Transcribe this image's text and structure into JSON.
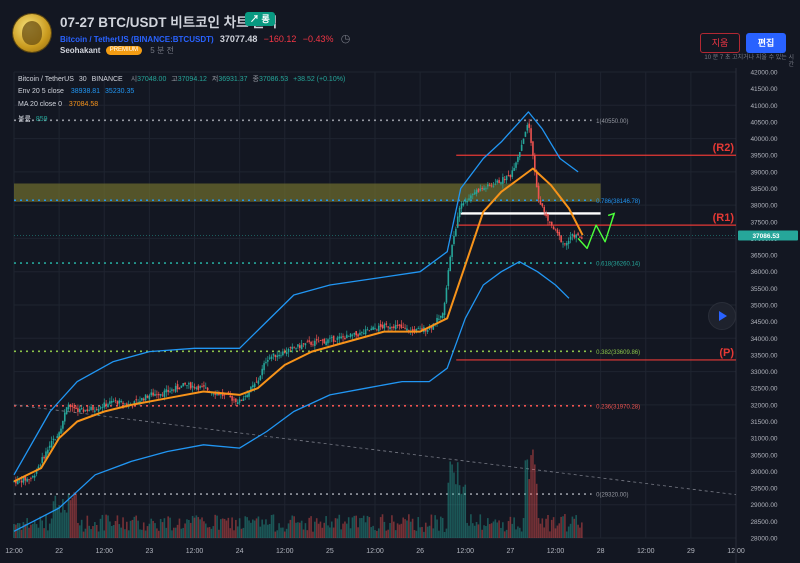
{
  "header": {
    "title": "07-27 BTC/USDT 비트코인 차트 분석",
    "badge": "↗ 롱",
    "symbol_name": "Bitcoin / TetherUS",
    "symbol_code": "(BINANCE:BTCUSDT)",
    "price": "37077.48",
    "change": "−160.12",
    "change_pct": "−0.43%",
    "author": "Seohakant",
    "author_badge": "PREMIUM",
    "published": "5 분 전",
    "delete_label": "지움",
    "edit_label": "편집",
    "edit_note": "10 분 7 초 고치거나 지울 수 있는 시간"
  },
  "legend": {
    "pair": "Bitcoin / TetherUS",
    "interval": "30",
    "exchange": "BINANCE",
    "o_label": "시",
    "o_val": "37048.00",
    "h_label": "고",
    "h_val": "37094.12",
    "l_label": "저",
    "l_val": "36931.37",
    "c_label": "종",
    "c_val": "37086.53",
    "c_chg": "+38.52 (+0.10%)",
    "env_label": "Env 20 5 close",
    "env_upper": "38938.81",
    "env_lower": "35230.35",
    "ma_label": "MA 20 close 0",
    "ma_val": "37084.58",
    "vol_label": "볼륨",
    "vol_val": "859"
  },
  "colors": {
    "bg": "#131722",
    "grid": "#1f2430",
    "axis_text": "#b2b5be",
    "up": "#26a69a",
    "down": "#ef5350",
    "ma": "#f7931a",
    "env": "#2196f3",
    "resistance": "#e53935",
    "forecast": "#4cff3b",
    "level": "#ffffff"
  },
  "chart_data": {
    "type": "candlestick",
    "y_axis": {
      "min": 28000,
      "max": 42000,
      "step": 500,
      "current_price_label": "37086.53"
    },
    "x_axis": {
      "ticks": [
        "12:00",
        "22",
        "12:00",
        "23",
        "12:00",
        "24",
        "12:00",
        "25",
        "12:00",
        "26",
        "12:00",
        "27",
        "12:00",
        "28",
        "12:00",
        "29",
        "12:00"
      ],
      "start_day": 21.5,
      "end_day": 29.5
    },
    "fib_levels": [
      {
        "ratio": "1(40550.00)",
        "price": 40550,
        "color": "#9598a1"
      },
      {
        "ratio": "0.786(38146.78)",
        "price": 38146.78,
        "color": "#2196f3"
      },
      {
        "ratio": "0.618(36260.14)",
        "price": 36260.14,
        "color": "#26a69a"
      },
      {
        "ratio": "0.382(33609.86)",
        "price": 33609.86,
        "color": "#8bc34a"
      },
      {
        "ratio": "0.236(31970.28)",
        "price": 31970.28,
        "color": "#ef5350"
      },
      {
        "ratio": "0(29320.00)",
        "price": 29320,
        "color": "#9598a1"
      }
    ],
    "zones": [
      {
        "label": "(R2)",
        "price": 39500
      },
      {
        "label": "(R1)",
        "price": 37400
      },
      {
        "label": "(P)",
        "price": 33350
      }
    ],
    "supply_zone": {
      "from": 38100,
      "to": 38650
    },
    "key_level": 37750,
    "price_path": [
      [
        21.5,
        29700
      ],
      [
        21.7,
        29800
      ],
      [
        21.9,
        30800
      ],
      [
        22.0,
        31200
      ],
      [
        22.1,
        32000
      ],
      [
        22.2,
        31800
      ],
      [
        22.4,
        31900
      ],
      [
        22.6,
        32100
      ],
      [
        22.8,
        32000
      ],
      [
        23.0,
        32300
      ],
      [
        23.2,
        32400
      ],
      [
        23.4,
        32600
      ],
      [
        23.6,
        32500
      ],
      [
        23.8,
        32300
      ],
      [
        24.0,
        32100
      ],
      [
        24.2,
        32700
      ],
      [
        24.3,
        33400
      ],
      [
        24.5,
        33600
      ],
      [
        24.7,
        33800
      ],
      [
        24.9,
        33900
      ],
      [
        25.1,
        34000
      ],
      [
        25.3,
        34100
      ],
      [
        25.5,
        34300
      ],
      [
        25.7,
        34400
      ],
      [
        25.9,
        34200
      ],
      [
        26.1,
        34300
      ],
      [
        26.25,
        34700
      ],
      [
        26.35,
        36800
      ],
      [
        26.45,
        38000
      ],
      [
        26.6,
        38400
      ],
      [
        26.8,
        38600
      ],
      [
        27.0,
        38900
      ],
      [
        27.1,
        39600
      ],
      [
        27.2,
        40550
      ],
      [
        27.25,
        39500
      ],
      [
        27.3,
        38300
      ],
      [
        27.4,
        37600
      ],
      [
        27.5,
        37200
      ],
      [
        27.6,
        36800
      ],
      [
        27.7,
        37100
      ],
      [
        27.8,
        37000
      ]
    ],
    "ma_path": [
      [
        21.5,
        29700
      ],
      [
        21.8,
        30100
      ],
      [
        22.0,
        31000
      ],
      [
        22.2,
        31500
      ],
      [
        22.5,
        31800
      ],
      [
        22.8,
        32000
      ],
      [
        23.2,
        32200
      ],
      [
        23.6,
        32400
      ],
      [
        24.0,
        32300
      ],
      [
        24.2,
        32500
      ],
      [
        24.5,
        33200
      ],
      [
        24.8,
        33600
      ],
      [
        25.2,
        33900
      ],
      [
        25.6,
        34200
      ],
      [
        26.0,
        34200
      ],
      [
        26.3,
        34600
      ],
      [
        26.5,
        36200
      ],
      [
        26.7,
        37800
      ],
      [
        26.9,
        38400
      ],
      [
        27.1,
        38800
      ],
      [
        27.25,
        39100
      ],
      [
        27.45,
        38600
      ],
      [
        27.65,
        37900
      ],
      [
        27.8,
        37100
      ]
    ],
    "env_upper_path": [
      [
        21.5,
        29900
      ],
      [
        21.9,
        31800
      ],
      [
        22.2,
        32700
      ],
      [
        22.6,
        33300
      ],
      [
        23.0,
        33600
      ],
      [
        23.5,
        33700
      ],
      [
        24.0,
        33700
      ],
      [
        24.3,
        34500
      ],
      [
        24.6,
        35300
      ],
      [
        25.0,
        35600
      ],
      [
        25.5,
        35800
      ],
      [
        26.0,
        36000
      ],
      [
        26.3,
        36600
      ],
      [
        26.45,
        38500
      ],
      [
        26.7,
        39400
      ],
      [
        26.9,
        39900
      ],
      [
        27.1,
        40500
      ],
      [
        27.2,
        40800
      ],
      [
        27.35,
        40300
      ],
      [
        27.55,
        39400
      ],
      [
        27.75,
        39000
      ]
    ],
    "env_lower_path": [
      [
        21.5,
        28200
      ],
      [
        22.0,
        28900
      ],
      [
        22.4,
        29900
      ],
      [
        22.8,
        30300
      ],
      [
        23.2,
        30600
      ],
      [
        23.6,
        30800
      ],
      [
        24.0,
        30700
      ],
      [
        24.3,
        31200
      ],
      [
        24.6,
        31800
      ],
      [
        25.0,
        32300
      ],
      [
        25.4,
        32500
      ],
      [
        25.8,
        32700
      ],
      [
        26.1,
        32700
      ],
      [
        26.3,
        33100
      ],
      [
        26.5,
        34600
      ],
      [
        26.7,
        35600
      ],
      [
        26.9,
        36000
      ],
      [
        27.1,
        36300
      ],
      [
        27.3,
        36000
      ],
      [
        27.5,
        35600
      ],
      [
        27.65,
        35200
      ]
    ],
    "forecast_path": [
      [
        27.75,
        37000
      ],
      [
        27.85,
        36700
      ],
      [
        27.95,
        37400
      ],
      [
        28.05,
        36900
      ],
      [
        28.15,
        37750
      ]
    ],
    "dashed_trendline": [
      [
        21.5,
        32000
      ],
      [
        29.5,
        29300
      ]
    ]
  }
}
